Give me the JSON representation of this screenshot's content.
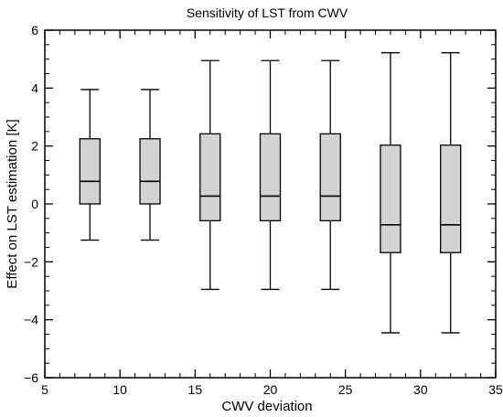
{
  "chart_data": {
    "type": "box",
    "title": "Sensitivity of LST from CWV",
    "xlabel": "CWV deviation",
    "ylabel": "Effect on LST estimation [K]",
    "xlim": [
      5,
      35
    ],
    "ylim": [
      -6,
      6
    ],
    "xticks": [
      5,
      10,
      15,
      20,
      25,
      30,
      35
    ],
    "yticks": [
      -6,
      -4,
      -2,
      0,
      2,
      4,
      6
    ],
    "grid": false,
    "box_color": "#d3d3d3",
    "boxes": [
      {
        "x": 8,
        "min": -1.25,
        "q1": 0.0,
        "median": 0.78,
        "q3": 2.25,
        "max": 3.95
      },
      {
        "x": 12,
        "min": -1.25,
        "q1": 0.0,
        "median": 0.78,
        "q3": 2.25,
        "max": 3.95
      },
      {
        "x": 16,
        "min": -2.95,
        "q1": -0.58,
        "median": 0.27,
        "q3": 2.42,
        "max": 4.95
      },
      {
        "x": 20,
        "min": -2.95,
        "q1": -0.58,
        "median": 0.27,
        "q3": 2.42,
        "max": 4.95
      },
      {
        "x": 24,
        "min": -2.95,
        "q1": -0.58,
        "median": 0.27,
        "q3": 2.42,
        "max": 4.95
      },
      {
        "x": 28,
        "min": -4.45,
        "q1": -1.68,
        "median": -0.72,
        "q3": 2.03,
        "max": 5.22
      },
      {
        "x": 32,
        "min": -4.45,
        "q1": -1.68,
        "median": -0.72,
        "q3": 2.03,
        "max": 5.22
      }
    ]
  }
}
